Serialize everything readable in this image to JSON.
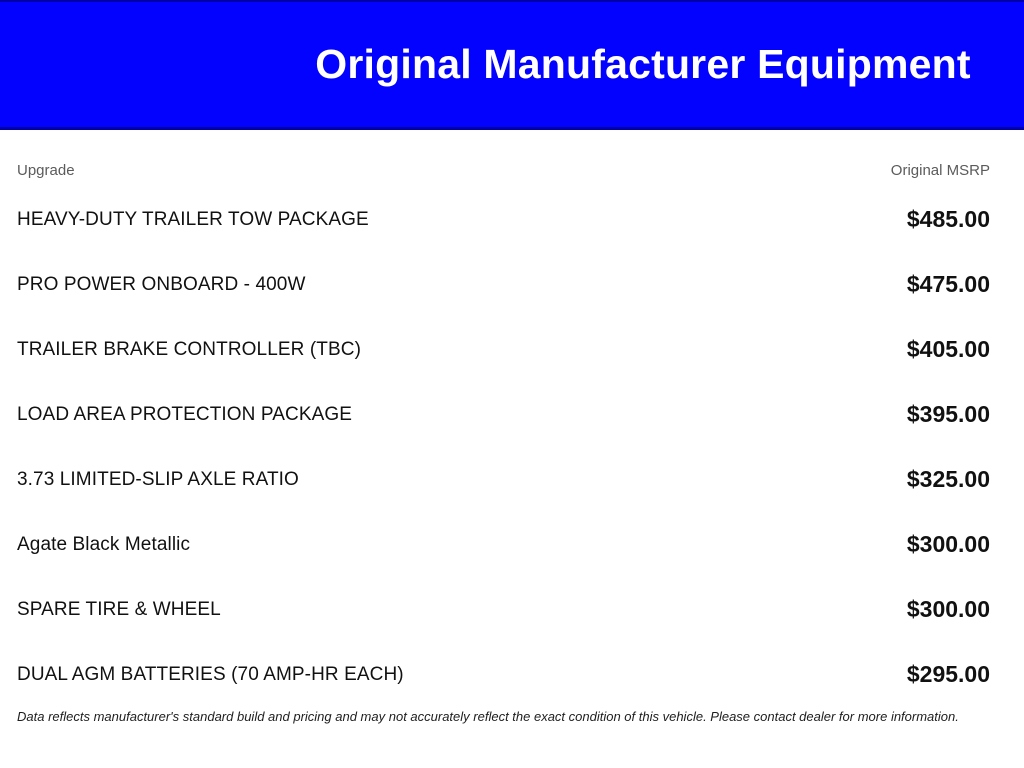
{
  "colors": {
    "banner_background": "#0202fe",
    "banner_border": "#0000a8",
    "text_primary": "#111111",
    "column_label_gray": "#5b5b5b"
  },
  "banner": {
    "title": "Original Manufacturer Equipment"
  },
  "table": {
    "columns": {
      "upgrade_label": "Upgrade",
      "msrp_label": "Original MSRP"
    },
    "rows": [
      {
        "name": "HEAVY-DUTY TRAILER TOW PACKAGE",
        "price": "$485.00"
      },
      {
        "name": "PRO POWER ONBOARD - 400W",
        "price": "$475.00"
      },
      {
        "name": "TRAILER BRAKE CONTROLLER (TBC)",
        "price": "$405.00"
      },
      {
        "name": "LOAD AREA PROTECTION PACKAGE",
        "price": "$395.00"
      },
      {
        "name": "3.73 LIMITED-SLIP AXLE RATIO",
        "price": "$325.00"
      },
      {
        "name": "Agate Black Metallic",
        "price": "$300.00"
      },
      {
        "name": "SPARE TIRE & WHEEL",
        "price": "$300.00"
      },
      {
        "name": "DUAL AGM BATTERIES (70 AMP-HR EACH)",
        "price": "$295.00"
      }
    ]
  },
  "footer": {
    "disclaimer": "Data reflects manufacturer's standard build and pricing and may not accurately reflect the exact condition of this vehicle. Please contact dealer for more information."
  }
}
